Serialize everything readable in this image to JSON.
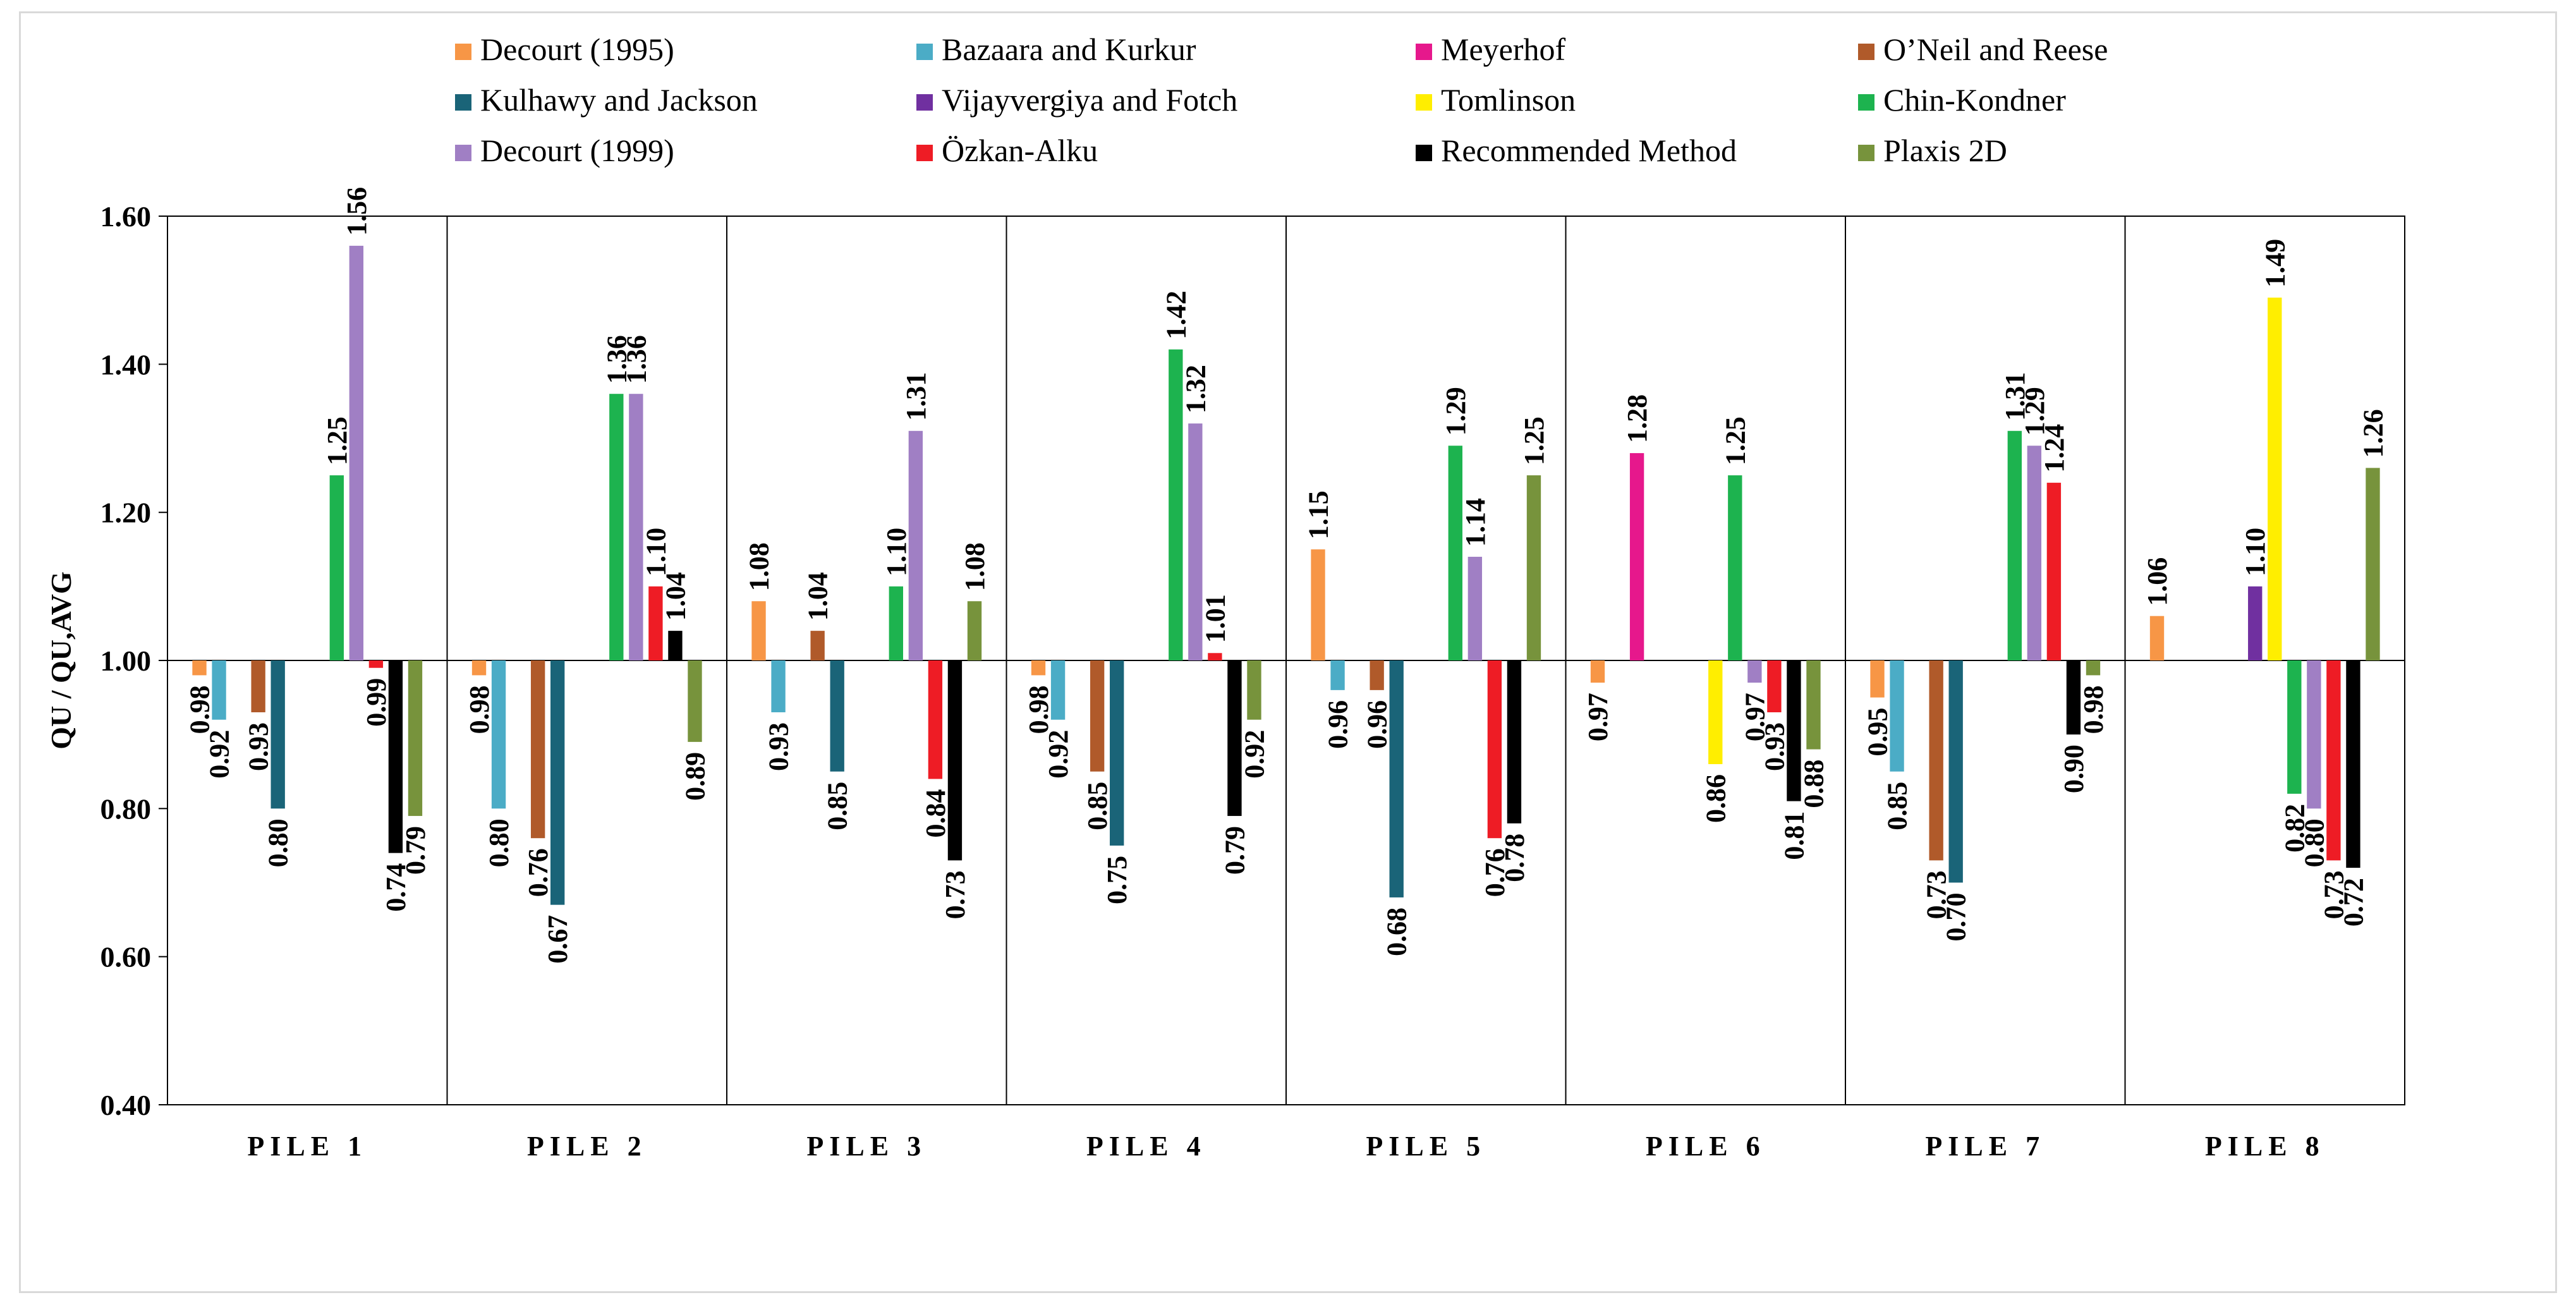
{
  "chart_data": {
    "type": "bar",
    "title": "",
    "xlabel": "",
    "ylabel": "QU / QU,AVG",
    "ylim": [
      0.4,
      1.6
    ],
    "baseline": 1.0,
    "yticks": [
      "0.40",
      "0.60",
      "0.80",
      "1.00",
      "1.20",
      "1.40",
      "1.60"
    ],
    "categories": [
      "PILE 1",
      "PILE 2",
      "PILE 3",
      "PILE 4",
      "PILE 5",
      "PILE 6",
      "PILE 7",
      "PILE 8"
    ],
    "legend_position": "top",
    "series": [
      {
        "name": "Decourt (1995)",
        "color": "#f79646",
        "values": [
          0.98,
          0.98,
          1.08,
          0.98,
          1.15,
          0.97,
          0.95,
          1.06
        ]
      },
      {
        "name": "Bazaara and Kurkur",
        "color": "#4bacc6",
        "values": [
          0.92,
          0.8,
          0.93,
          0.92,
          0.96,
          null,
          0.85,
          null
        ]
      },
      {
        "name": "Meyerhof",
        "color": "#e6188c",
        "values": [
          null,
          null,
          null,
          null,
          null,
          1.28,
          null,
          null
        ]
      },
      {
        "name": "O’Neil and Reese",
        "color": "#b05a2a",
        "values": [
          0.93,
          0.76,
          1.04,
          0.85,
          0.96,
          null,
          0.73,
          null
        ]
      },
      {
        "name": "Kulhawy and Jackson",
        "color": "#1a6478",
        "values": [
          0.8,
          0.67,
          0.85,
          0.75,
          0.68,
          null,
          0.7,
          null
        ]
      },
      {
        "name": "Vijayvergiya and Fotch",
        "color": "#7030a0",
        "values": [
          null,
          null,
          null,
          null,
          null,
          null,
          null,
          1.1
        ]
      },
      {
        "name": "Tomlinson",
        "color": "#ffee00",
        "values": [
          null,
          null,
          null,
          null,
          null,
          0.86,
          null,
          1.49
        ]
      },
      {
        "name": "Chin-Kondner",
        "color": "#1db34f",
        "values": [
          1.25,
          1.36,
          1.1,
          1.42,
          1.29,
          1.25,
          1.31,
          0.82
        ]
      },
      {
        "name": "Decourt (1999)",
        "color": "#a07fc4",
        "values": [
          1.56,
          1.36,
          1.31,
          1.32,
          1.14,
          0.97,
          1.29,
          0.8
        ]
      },
      {
        "name": "Özkan-Alku",
        "color": "#ee1c25",
        "values": [
          0.99,
          1.1,
          0.84,
          1.01,
          0.76,
          0.93,
          1.24,
          0.73
        ]
      },
      {
        "name": "Recommended Method",
        "color": "#000000",
        "values": [
          0.74,
          1.04,
          0.73,
          0.79,
          0.78,
          0.81,
          0.9,
          0.72
        ]
      },
      {
        "name": "Plaxis 2D",
        "color": "#77933c",
        "values": [
          0.79,
          0.89,
          1.08,
          0.92,
          1.25,
          0.88,
          0.98,
          1.26
        ]
      }
    ]
  }
}
